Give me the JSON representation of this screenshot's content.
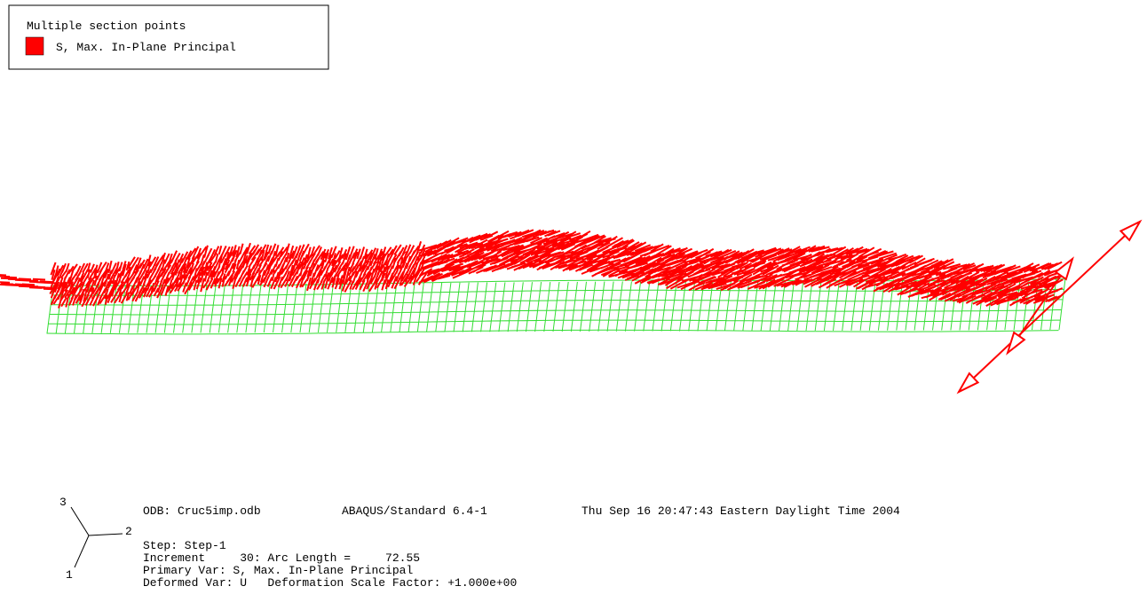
{
  "legend": {
    "title": "Multiple section points",
    "entry": "S, Max. In-Plane Principal",
    "color": "#ff0000"
  },
  "triad": {
    "axis_3": "3",
    "axis_2": "2",
    "axis_1": "1"
  },
  "info": {
    "odb": "ODB: Cruc5imp.odb",
    "solver": "ABAQUS/Standard 6.4-1",
    "date": "Thu Sep 16 20:47:43 Eastern Daylight Time 2004"
  },
  "status": {
    "lines": [
      "Step: Step-1",
      "Increment     30: Arc Length =     72.55",
      "Primary Var: S, Max. In-Plane Principal",
      "Deformed Var: U   Deformation Scale Factor: +1.000e+00"
    ]
  }
}
